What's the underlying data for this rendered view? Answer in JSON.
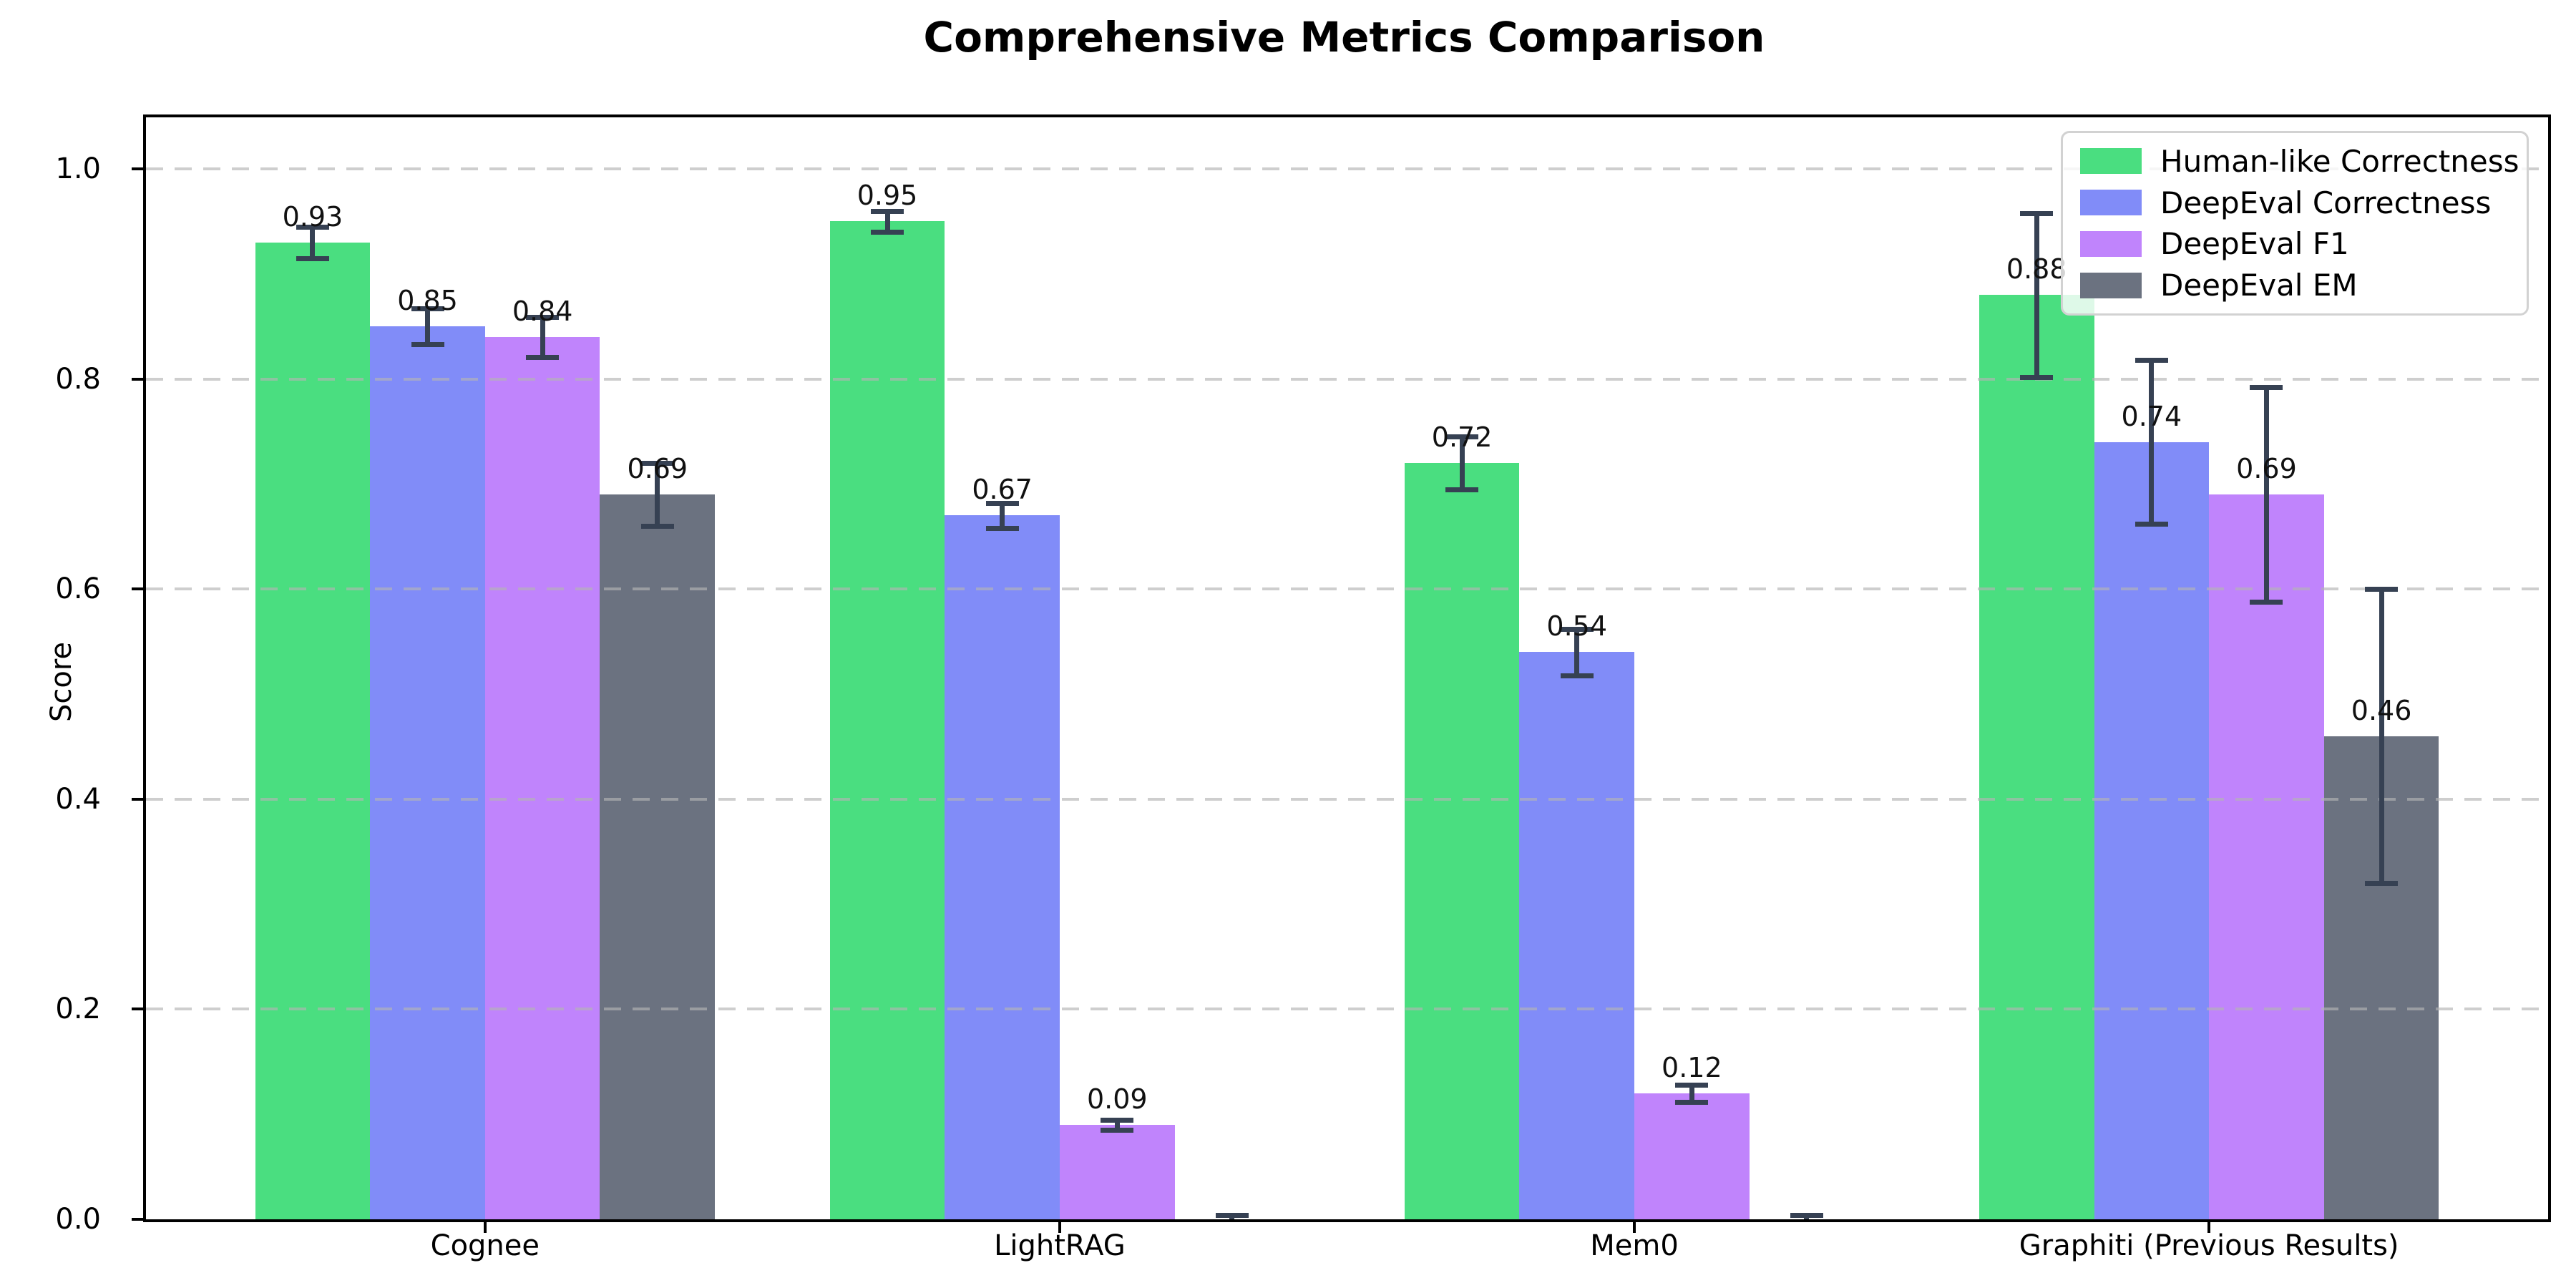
{
  "chart_data": {
    "type": "bar",
    "title": "Comprehensive Metrics Comparison",
    "ylabel": "Score",
    "xlabel": "",
    "grid": "horizontal-dashed",
    "legend_position": "upper-right",
    "ylim": [
      0,
      1.049
    ],
    "yticks": [
      "0.0",
      "0.2",
      "0.4",
      "0.6",
      "0.8",
      "1.0"
    ],
    "ytick_values": [
      0.0,
      0.2,
      0.4,
      0.6,
      0.8,
      1.0
    ],
    "categories": [
      "Cognee",
      "LightRAG",
      "Mem0",
      "Graphiti (Previous Results)"
    ],
    "series": [
      {
        "name": "Human-like Correctness",
        "color": "#4ade80",
        "values": [
          0.93,
          0.95,
          0.72,
          0.88
        ],
        "errors": [
          0.015,
          0.01,
          0.025,
          0.078
        ],
        "bar_labels": [
          "0.93",
          "0.95",
          "0.72",
          "0.88"
        ]
      },
      {
        "name": "DeepEval Correctness",
        "color": "#818cf8",
        "values": [
          0.85,
          0.67,
          0.54,
          0.74
        ],
        "errors": [
          0.017,
          0.012,
          0.022,
          0.078
        ],
        "bar_labels": [
          "0.85",
          "0.67",
          "0.54",
          "0.74"
        ]
      },
      {
        "name": "DeepEval F1",
        "color": "#c084fc",
        "values": [
          0.84,
          0.09,
          0.12,
          0.69
        ],
        "errors": [
          0.019,
          0.005,
          0.008,
          0.102
        ],
        "bar_labels": [
          "0.84",
          "0.09",
          "0.12",
          "0.69"
        ]
      },
      {
        "name": "DeepEval EM",
        "color": "#6b7280",
        "values": [
          0.69,
          0.0,
          0.0,
          0.46
        ],
        "errors": [
          0.03,
          0.004,
          0.004,
          0.14
        ],
        "bar_labels": [
          "0.69",
          "",
          "",
          "0.46"
        ]
      }
    ],
    "error_bar_color": "#364153",
    "gridline_color": "#d9d9d9"
  }
}
